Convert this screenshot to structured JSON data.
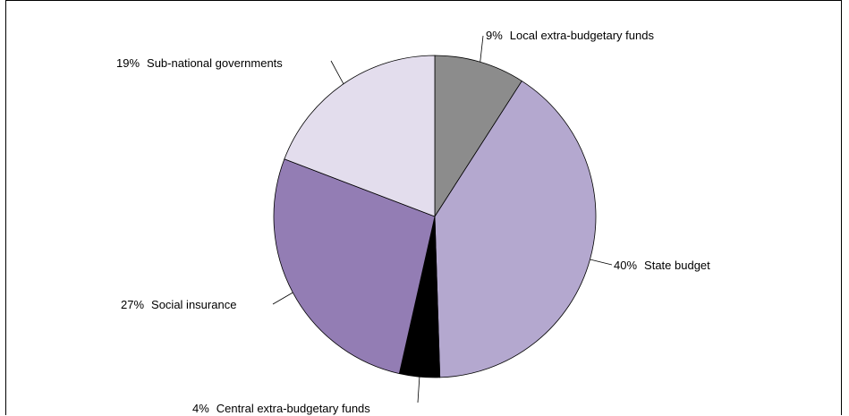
{
  "chart_data": {
    "type": "pie",
    "slices": [
      {
        "label": "Local extra-budgetary funds",
        "pct_text": "9%",
        "value": 9,
        "color": "#8c8c8c"
      },
      {
        "label": "State budget",
        "pct_text": "40%",
        "value": 40,
        "color": "#b4a8cf"
      },
      {
        "label": "Central extra-budgetary funds",
        "pct_text": "4%",
        "value": 4,
        "color": "#000000"
      },
      {
        "label": "Social insurance",
        "pct_text": "27%",
        "value": 27,
        "color": "#937db4"
      },
      {
        "label": "Sub-national governments",
        "pct_text": "19%",
        "value": 19,
        "color": "#e3dded"
      }
    ],
    "start_angle": "12 o'clock",
    "direction": "clockwise",
    "legend": "none"
  }
}
